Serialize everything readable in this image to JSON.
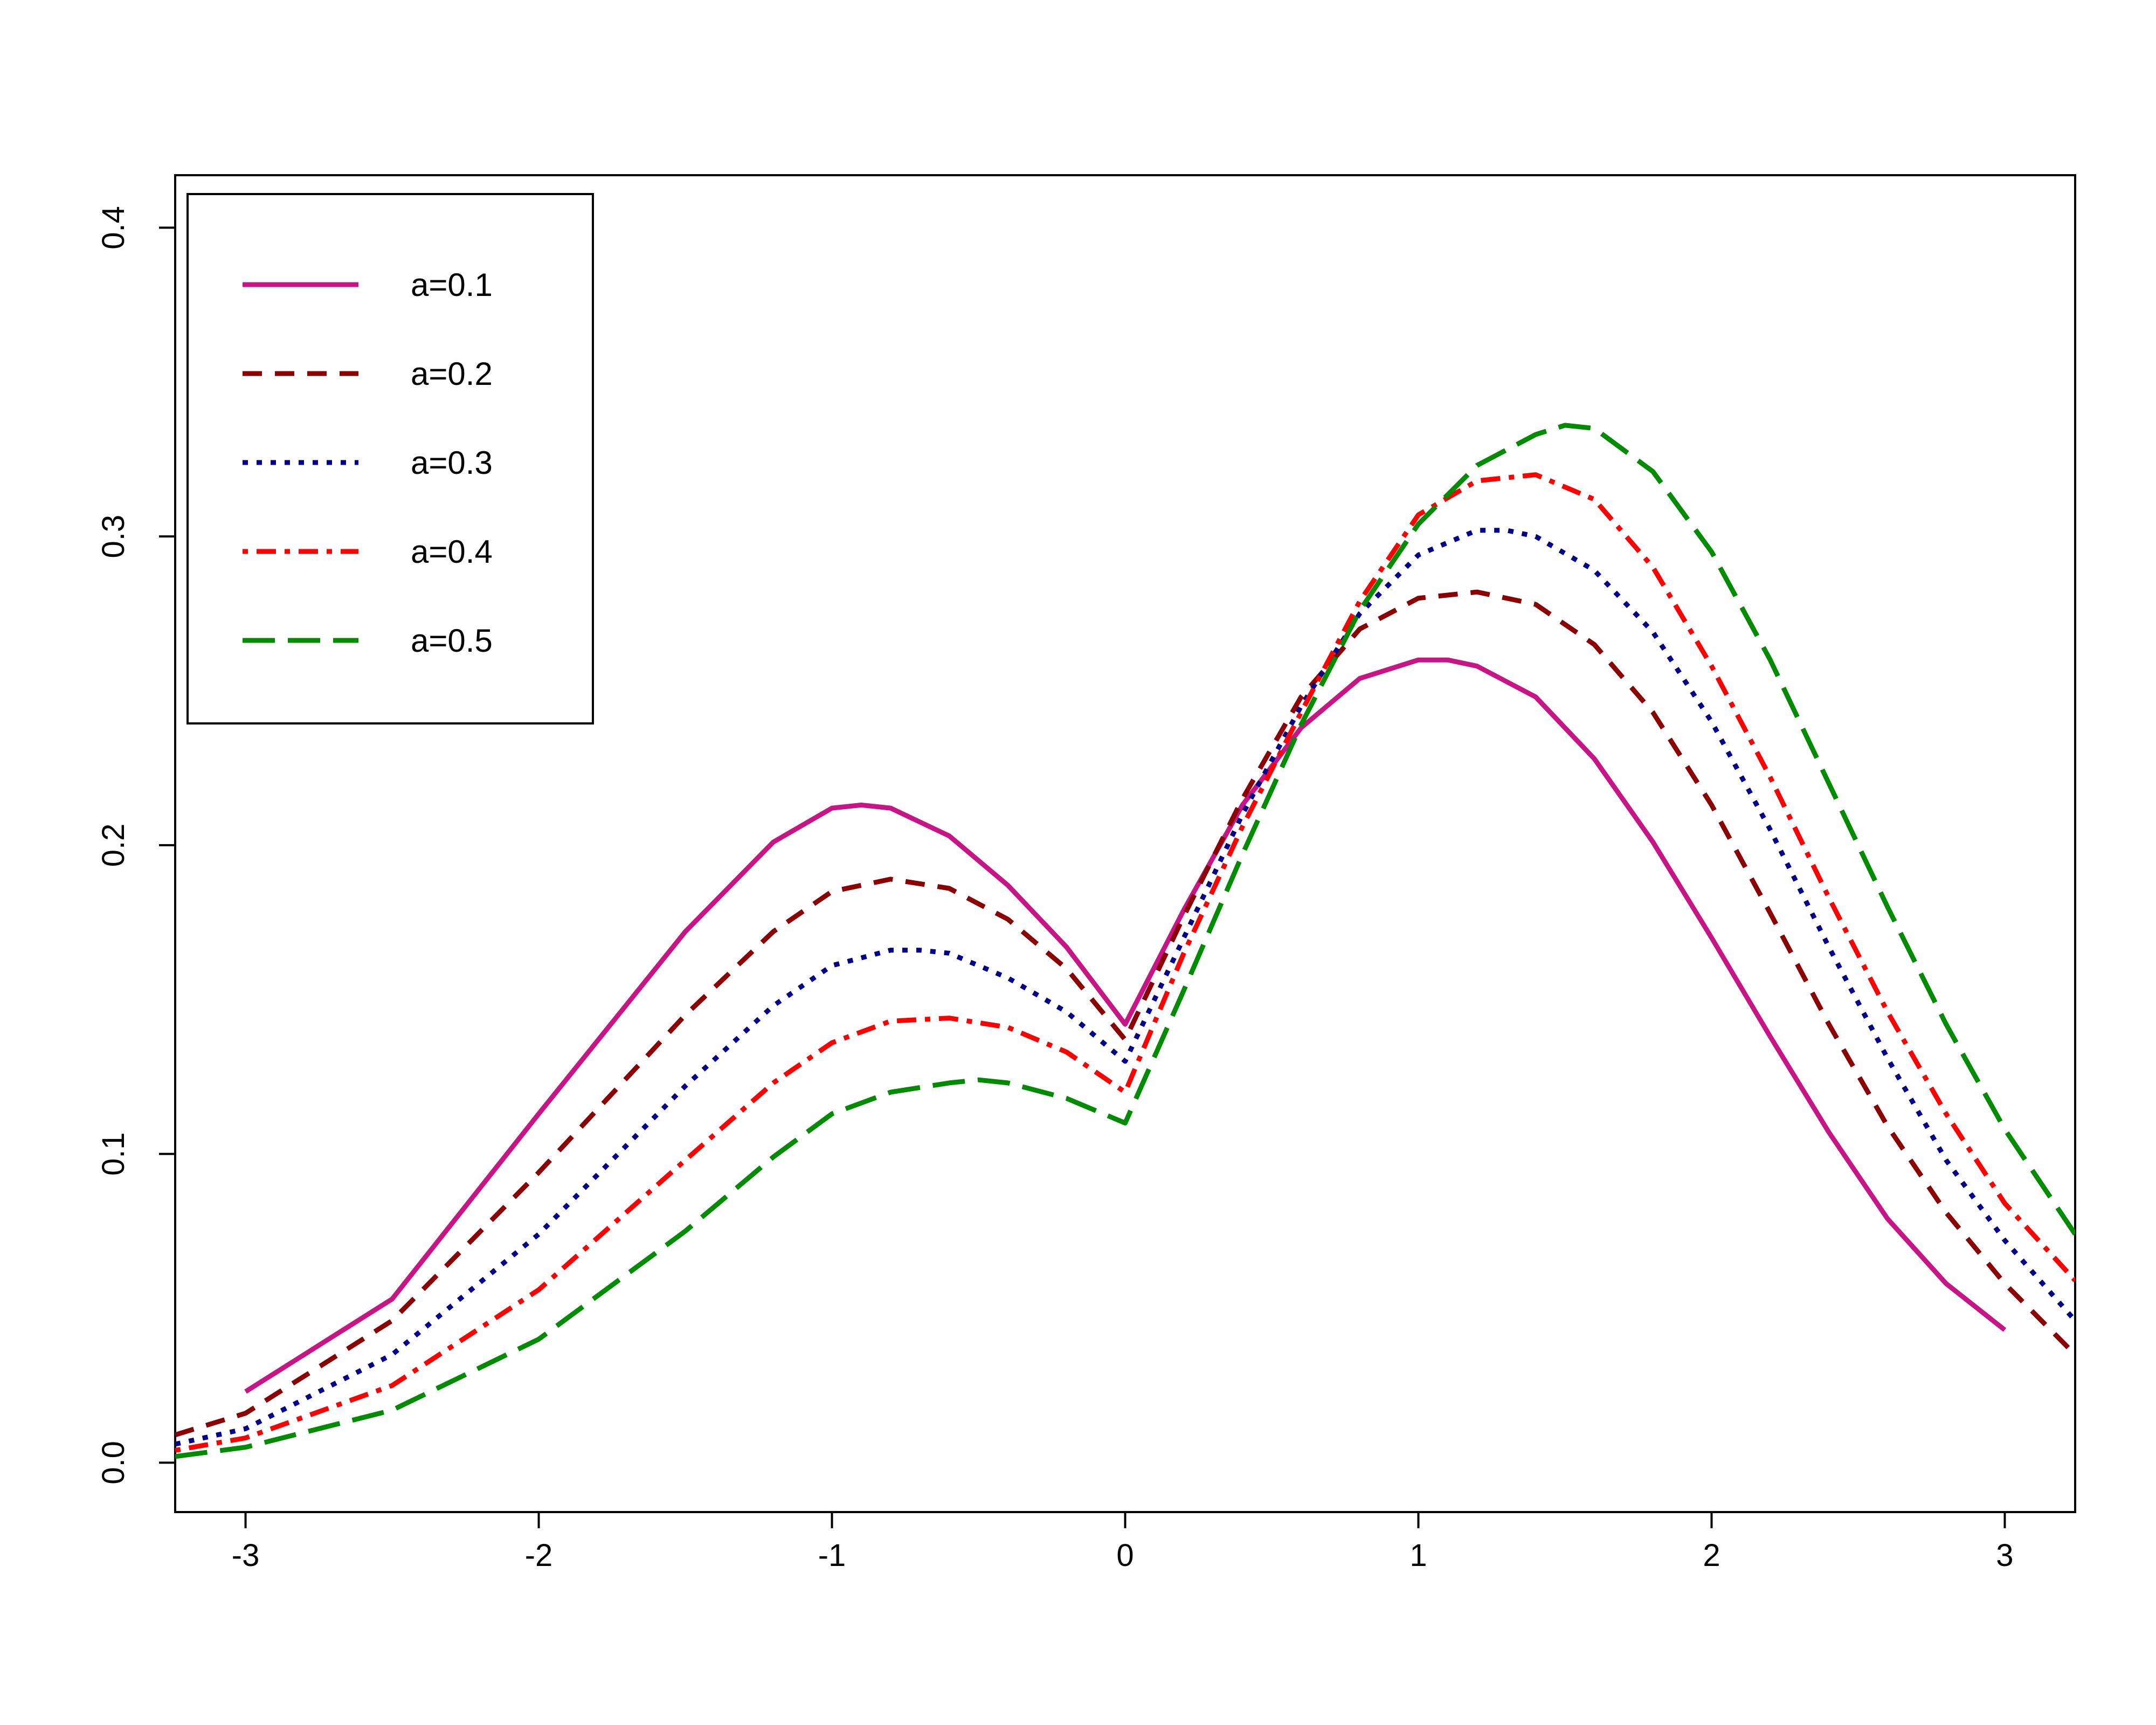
{
  "chart_data": {
    "type": "line",
    "title": "",
    "xlabel": "",
    "ylabel": "",
    "xlim": [
      -3.24,
      3.24
    ],
    "ylim": [
      -0.016,
      0.417
    ],
    "xticks": [
      -3,
      -2,
      -1,
      0,
      1,
      2,
      3
    ],
    "xtick_labels": [
      "-3",
      "-2",
      "-1",
      "0",
      "1",
      "2",
      "3"
    ],
    "yticks": [
      0.0,
      0.1,
      0.2,
      0.3,
      0.4
    ],
    "ytick_labels": [
      "0.0",
      "0.1",
      "0.2",
      "0.3",
      "0.4"
    ],
    "grid": false,
    "legend_position": "top-left",
    "series": [
      {
        "name": "a=0.1",
        "color": "#C71585",
        "dash": "solid",
        "x": [
          -3.0,
          -2.5,
          -2.0,
          -1.5,
          -1.2,
          -1.0,
          -0.9,
          -0.8,
          -0.6,
          -0.4,
          -0.2,
          0.0,
          0.2,
          0.4,
          0.6,
          0.8,
          1.0,
          1.1,
          1.2,
          1.4,
          1.6,
          1.8,
          2.0,
          2.2,
          2.4,
          2.6,
          2.8,
          3.0
        ],
        "y": [
          0.023,
          0.053,
          0.113,
          0.172,
          0.201,
          0.212,
          0.213,
          0.212,
          0.203,
          0.187,
          0.167,
          0.142,
          0.179,
          0.213,
          0.238,
          0.254,
          0.26,
          0.26,
          0.258,
          0.248,
          0.228,
          0.201,
          0.17,
          0.138,
          0.107,
          0.079,
          0.058,
          0.043
        ]
      },
      {
        "name": "a=0.2",
        "color": "#8B0000",
        "dash": "dashed",
        "x": [
          -3.24,
          -3.0,
          -2.5,
          -2.0,
          -1.5,
          -1.2,
          -1.0,
          -0.8,
          -0.6,
          -0.4,
          -0.2,
          0.0,
          0.2,
          0.4,
          0.6,
          0.8,
          1.0,
          1.2,
          1.4,
          1.6,
          1.8,
          2.0,
          2.2,
          2.4,
          2.6,
          2.8,
          3.0,
          3.24
        ],
        "y": [
          0.009,
          0.016,
          0.046,
          0.094,
          0.145,
          0.172,
          0.185,
          0.189,
          0.186,
          0.176,
          0.16,
          0.137,
          0.177,
          0.215,
          0.248,
          0.27,
          0.28,
          0.282,
          0.278,
          0.265,
          0.243,
          0.213,
          0.178,
          0.142,
          0.109,
          0.081,
          0.058,
          0.035
        ]
      },
      {
        "name": "a=0.3",
        "color": "#00008B",
        "dash": "dotted",
        "x": [
          -3.24,
          -3.0,
          -2.5,
          -2.0,
          -1.5,
          -1.2,
          -1.0,
          -0.8,
          -0.7,
          -0.6,
          -0.4,
          -0.2,
          0.0,
          0.2,
          0.4,
          0.6,
          0.8,
          1.0,
          1.2,
          1.3,
          1.4,
          1.6,
          1.8,
          2.0,
          2.2,
          2.4,
          2.6,
          2.8,
          3.0,
          3.24
        ],
        "y": [
          0.006,
          0.011,
          0.035,
          0.074,
          0.122,
          0.148,
          0.161,
          0.166,
          0.166,
          0.165,
          0.157,
          0.146,
          0.13,
          0.17,
          0.21,
          0.245,
          0.275,
          0.294,
          0.302,
          0.302,
          0.3,
          0.289,
          0.269,
          0.24,
          0.205,
          0.167,
          0.131,
          0.098,
          0.072,
          0.046
        ]
      },
      {
        "name": "a=0.4",
        "color": "#FF0000",
        "dash": "dashdot",
        "x": [
          -3.24,
          -3.0,
          -2.5,
          -2.0,
          -1.5,
          -1.2,
          -1.0,
          -0.8,
          -0.6,
          -0.4,
          -0.2,
          0.0,
          0.2,
          0.4,
          0.6,
          0.8,
          1.0,
          1.2,
          1.4,
          1.6,
          1.8,
          2.0,
          2.2,
          2.4,
          2.6,
          2.8,
          3.0,
          3.24
        ],
        "y": [
          0.004,
          0.008,
          0.025,
          0.056,
          0.098,
          0.123,
          0.136,
          0.143,
          0.144,
          0.141,
          0.133,
          0.12,
          0.165,
          0.206,
          0.243,
          0.279,
          0.307,
          0.318,
          0.32,
          0.312,
          0.29,
          0.258,
          0.222,
          0.183,
          0.146,
          0.113,
          0.084,
          0.059
        ]
      },
      {
        "name": "a=0.5",
        "color": "#008B00",
        "dash": "longdash",
        "x": [
          -3.24,
          -3.0,
          -2.5,
          -2.0,
          -1.5,
          -1.2,
          -1.0,
          -0.8,
          -0.6,
          -0.5,
          -0.4,
          -0.2,
          0.0,
          0.2,
          0.4,
          0.6,
          0.8,
          1.0,
          1.2,
          1.4,
          1.5,
          1.6,
          1.8,
          2.0,
          2.2,
          2.4,
          2.6,
          2.8,
          3.0,
          3.24
        ],
        "y": [
          0.002,
          0.005,
          0.017,
          0.04,
          0.075,
          0.099,
          0.113,
          0.12,
          0.123,
          0.124,
          0.123,
          0.118,
          0.11,
          0.153,
          0.197,
          0.239,
          0.276,
          0.304,
          0.323,
          0.333,
          0.336,
          0.335,
          0.321,
          0.295,
          0.26,
          0.22,
          0.18,
          0.142,
          0.108,
          0.074
        ]
      }
    ]
  }
}
